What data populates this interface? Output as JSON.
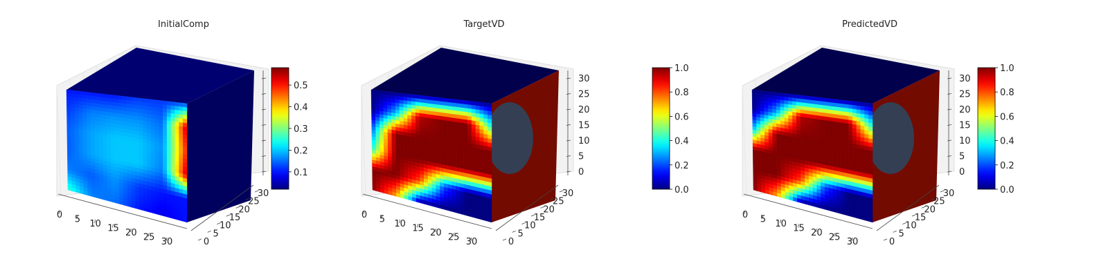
{
  "chart_data": [
    {
      "type": "heatmap",
      "subtype": "3d-voxel",
      "title": "InitialComp",
      "x_ticks": [
        "0",
        "5",
        "10",
        "15",
        "20",
        "25",
        "30"
      ],
      "y_ticks": [
        "0",
        "5",
        "10",
        "15",
        "20",
        "25",
        "30"
      ],
      "z_ticks": [
        "",
        "",
        "",
        "",
        "",
        "",
        ""
      ],
      "colorbar": {
        "colormap": "jet",
        "range": [
          0.02,
          0.58
        ],
        "ticks": [
          "0.1",
          "0.2",
          "0.3",
          "0.4",
          "0.5"
        ],
        "tick_values": [
          0.1,
          0.2,
          0.3,
          0.4,
          0.5
        ]
      },
      "front_face_values": [
        [
          0.1,
          0.1,
          0.1,
          0.12,
          0.12,
          0.12
        ],
        [
          0.12,
          0.16,
          0.17,
          0.17,
          0.15,
          0.55
        ],
        [
          0.14,
          0.18,
          0.2,
          0.2,
          0.17,
          0.5
        ],
        [
          0.14,
          0.18,
          0.2,
          0.2,
          0.16,
          0.55
        ],
        [
          0.16,
          0.14,
          0.17,
          0.12,
          0.1,
          0.1
        ],
        [
          0.26,
          0.16,
          0.15,
          0.1,
          0.08,
          0.1
        ]
      ],
      "side_face_level": 0.08,
      "top_face_level": 0.06
    },
    {
      "type": "heatmap",
      "subtype": "3d-voxel",
      "title": "TargetVD",
      "x_ticks": [
        "0",
        "5",
        "10",
        "15",
        "20",
        "25",
        "30"
      ],
      "y_ticks": [
        "0",
        "5",
        "10",
        "15",
        "20",
        "25",
        "30"
      ],
      "z_ticks": [
        "0",
        "5",
        "10",
        "15",
        "20",
        "25",
        "30"
      ],
      "colorbar": {
        "colormap": "jet",
        "range": [
          0.0,
          1.0
        ],
        "ticks": [
          "0.0",
          "0.2",
          "0.4",
          "0.6",
          "0.8",
          "1.0"
        ],
        "tick_values": [
          0.0,
          0.2,
          0.4,
          0.6,
          0.8,
          1.0
        ]
      },
      "front_face_values": [
        [
          0.0,
          0.0,
          0.0,
          0.0,
          0.0,
          0.0
        ],
        [
          0.0,
          0.3,
          0.95,
          1.0,
          1.0,
          0.4
        ],
        [
          0.2,
          1.0,
          1.0,
          1.0,
          1.0,
          1.0
        ],
        [
          0.4,
          1.0,
          1.0,
          1.0,
          1.0,
          1.0
        ],
        [
          1.0,
          1.0,
          0.8,
          0.2,
          0.0,
          0.0
        ],
        [
          1.0,
          0.7,
          0.0,
          0.0,
          0.0,
          0.0
        ]
      ],
      "side_face_level": 0.85,
      "top_face_level": 0.0
    },
    {
      "type": "heatmap",
      "subtype": "3d-voxel",
      "title": "PredictedVD",
      "x_ticks": [
        "0",
        "5",
        "10",
        "15",
        "20",
        "25",
        "30"
      ],
      "y_ticks": [
        "0",
        "5",
        "10",
        "15",
        "20",
        "25",
        "30"
      ],
      "z_ticks": [
        "0",
        "5",
        "10",
        "15",
        "20",
        "25",
        "30"
      ],
      "colorbar": {
        "colormap": "jet",
        "range": [
          0.0,
          1.0
        ],
        "ticks": [
          "0.0",
          "0.2",
          "0.4",
          "0.6",
          "0.8",
          "1.0"
        ],
        "tick_values": [
          0.0,
          0.2,
          0.4,
          0.6,
          0.8,
          1.0
        ]
      },
      "front_face_values": [
        [
          0.0,
          0.0,
          0.0,
          0.0,
          0.0,
          0.0
        ],
        [
          0.0,
          0.3,
          0.95,
          1.0,
          1.0,
          0.4
        ],
        [
          0.3,
          1.0,
          1.0,
          1.0,
          1.0,
          1.0
        ],
        [
          1.0,
          1.0,
          1.0,
          1.0,
          1.0,
          1.0
        ],
        [
          1.0,
          1.0,
          0.8,
          0.2,
          0.0,
          0.0
        ],
        [
          1.0,
          0.7,
          0.0,
          0.0,
          0.0,
          0.0
        ]
      ],
      "side_face_level": 0.85,
      "top_face_level": 0.0
    }
  ]
}
